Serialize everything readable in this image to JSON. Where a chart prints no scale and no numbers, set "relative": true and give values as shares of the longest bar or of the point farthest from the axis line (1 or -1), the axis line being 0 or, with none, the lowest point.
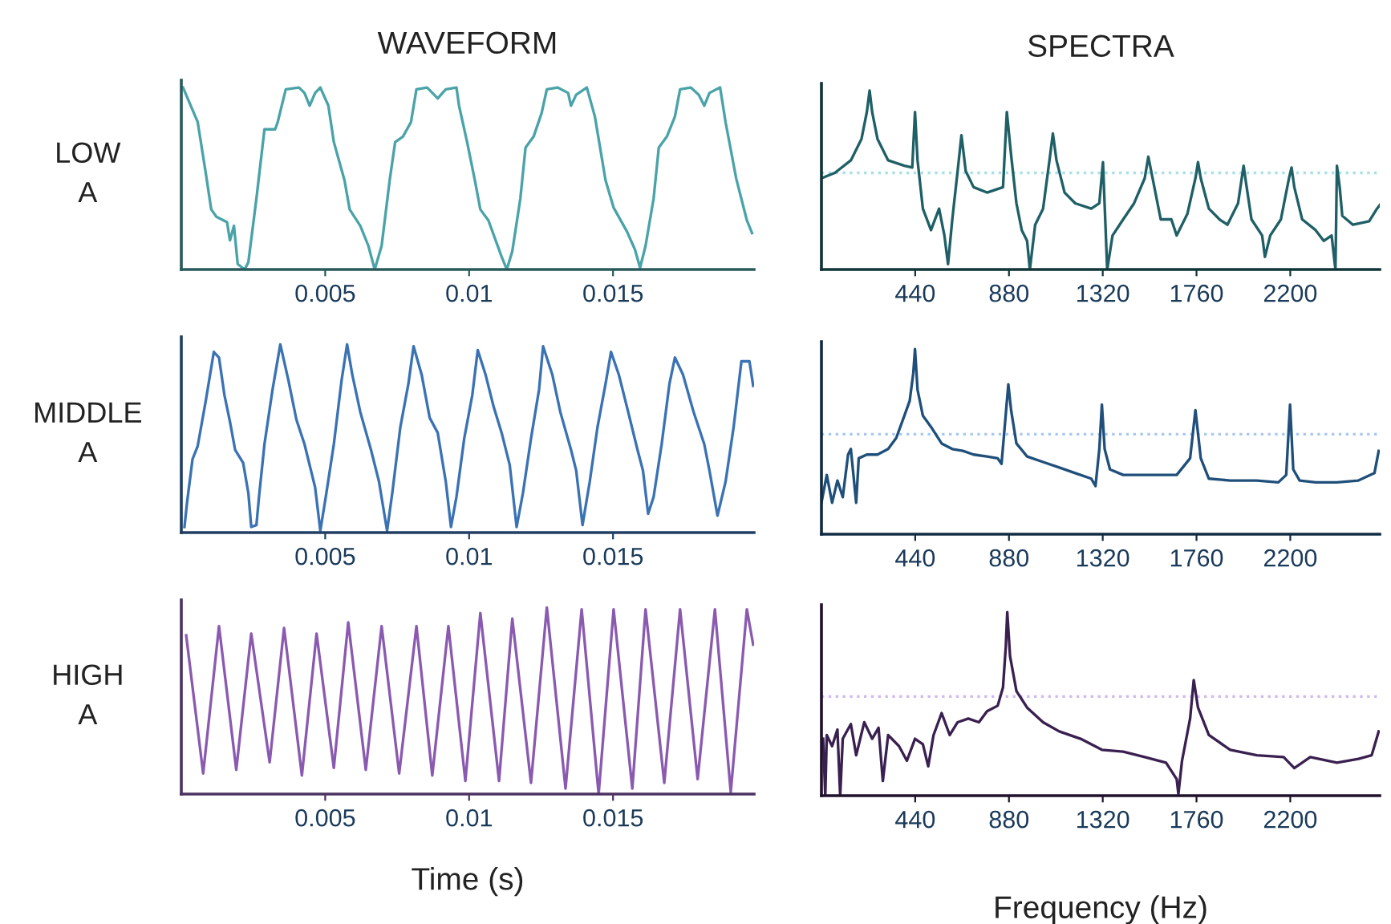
{
  "chart_data": [
    {
      "type": "line",
      "title": "WAVEFORM",
      "ylabel": "LOW\nA",
      "relative": true,
      "tick_labels": "x",
      "xlim": [
        0,
        0.0199
      ],
      "xticks": [
        0.005,
        0.01,
        0.015
      ],
      "x": [
        6e-05,
        0.00057,
        0.00085,
        0.00104,
        0.00122,
        0.00159,
        0.00169,
        0.00183,
        0.00196,
        0.0022,
        0.00233,
        0.00261,
        0.00289,
        0.00326,
        0.00335,
        0.00363,
        0.00409,
        0.00428,
        0.00446,
        0.00465,
        0.00483,
        0.00511,
        0.0053,
        0.00567,
        0.00585,
        0.00622,
        0.0065,
        0.00672,
        0.00696,
        0.00724,
        0.00743,
        0.0077,
        0.00798,
        0.00817,
        0.00854,
        0.00891,
        0.00919,
        0.00956,
        0.00965,
        0.00993,
        0.0102,
        0.01039,
        0.01067,
        0.01113,
        0.01131,
        0.0115,
        0.01178,
        0.01196,
        0.01224,
        0.01252,
        0.0127,
        0.01307,
        0.01344,
        0.01354,
        0.01372,
        0.01409,
        0.01437,
        0.01474,
        0.01502,
        0.01548,
        0.01576,
        0.01594,
        0.01613,
        0.01641,
        0.01659,
        0.01687,
        0.01715,
        0.01733,
        0.0177,
        0.01798,
        0.01817,
        0.01835,
        0.01872,
        0.01891,
        0.01928,
        0.01965,
        0.01983
      ],
      "series": [
        {
          "color": "#4aa3a8",
          "values": [
            1.0,
            0.81,
            0.53,
            0.33,
            0.29,
            0.26,
            0.16,
            0.24,
            0.03,
            0.0,
            0.04,
            0.39,
            0.77,
            0.77,
            0.81,
            0.99,
            1.0,
            0.97,
            0.9,
            0.97,
            1.0,
            0.9,
            0.7,
            0.49,
            0.33,
            0.24,
            0.13,
            0.0,
            0.13,
            0.49,
            0.7,
            0.73,
            0.81,
            0.99,
            1.0,
            0.94,
            0.99,
            1.0,
            0.9,
            0.7,
            0.49,
            0.33,
            0.27,
            0.07,
            0.0,
            0.1,
            0.39,
            0.67,
            0.73,
            0.86,
            0.99,
            1.0,
            0.97,
            0.9,
            0.96,
            1.0,
            0.84,
            0.49,
            0.34,
            0.21,
            0.11,
            0.01,
            0.13,
            0.39,
            0.67,
            0.73,
            0.84,
            0.99,
            1.0,
            0.96,
            0.9,
            0.97,
            1.0,
            0.81,
            0.5,
            0.27,
            0.2
          ]
        }
      ]
    },
    {
      "type": "line",
      "title": "SPECTRA",
      "relative": true,
      "tick_labels": "x",
      "xlim": [
        0,
        2620
      ],
      "xticks": [
        440,
        880,
        1320,
        1760,
        2200
      ],
      "ref_lines": [
        {
          "axis": "y",
          "value": 0.54,
          "color": "#a8e0e8",
          "line_style": "dotted"
        }
      ],
      "x": [
        0,
        63,
        138,
        188,
        213,
        226,
        238,
        263,
        313,
        389,
        426,
        439,
        451,
        476,
        514,
        552,
        577,
        594,
        614,
        639,
        657,
        677,
        714,
        777,
        852,
        870,
        890,
        915,
        940,
        965,
        978,
        1003,
        1040,
        1070,
        1086,
        1103,
        1141,
        1191,
        1266,
        1304,
        1321,
        1341,
        1366,
        1416,
        1467,
        1517,
        1534,
        1554,
        1592,
        1642,
        1667,
        1717,
        1755,
        1767,
        1780,
        1818,
        1868,
        1905,
        1955,
        1981,
        1993,
        2018,
        2068,
        2081,
        2106,
        2156,
        2194,
        2206,
        2219,
        2256,
        2319,
        2357,
        2394,
        2412,
        2419,
        2432,
        2444,
        2494,
        2570,
        2607,
        2620
      ],
      "series": [
        {
          "color": "#1f5f66",
          "values": [
            0.51,
            0.54,
            0.61,
            0.73,
            0.88,
            1.0,
            0.88,
            0.73,
            0.61,
            0.58,
            0.57,
            0.88,
            0.61,
            0.34,
            0.22,
            0.34,
            0.19,
            0.03,
            0.28,
            0.55,
            0.75,
            0.55,
            0.46,
            0.43,
            0.46,
            0.88,
            0.64,
            0.37,
            0.22,
            0.16,
            0.0,
            0.25,
            0.34,
            0.61,
            0.76,
            0.61,
            0.43,
            0.37,
            0.34,
            0.37,
            0.6,
            0.0,
            0.19,
            0.28,
            0.37,
            0.51,
            0.63,
            0.51,
            0.28,
            0.28,
            0.19,
            0.31,
            0.51,
            0.6,
            0.51,
            0.34,
            0.28,
            0.25,
            0.37,
            0.58,
            0.48,
            0.28,
            0.19,
            0.07,
            0.19,
            0.28,
            0.51,
            0.57,
            0.46,
            0.28,
            0.22,
            0.16,
            0.19,
            0.0,
            0.58,
            0.46,
            0.3,
            0.25,
            0.27,
            0.34,
            0.36
          ]
        }
      ]
    },
    {
      "type": "line",
      "ylabel": "MIDDLE\nA",
      "relative": true,
      "tick_labels": "x",
      "xlim": [
        0,
        0.0199
      ],
      "xticks": [
        0.005,
        0.01,
        0.015
      ],
      "x": [
        0.00011,
        0.0002,
        0.00039,
        0.00057,
        0.00085,
        0.00113,
        0.00131,
        0.0015,
        0.00169,
        0.00187,
        0.00215,
        0.00233,
        0.00243,
        0.00261,
        0.0027,
        0.00289,
        0.00317,
        0.00344,
        0.00372,
        0.004,
        0.00428,
        0.00465,
        0.00483,
        0.00502,
        0.0053,
        0.00557,
        0.00576,
        0.00594,
        0.00622,
        0.00659,
        0.00687,
        0.00715,
        0.00733,
        0.00761,
        0.00789,
        0.00807,
        0.00835,
        0.00863,
        0.00891,
        0.00919,
        0.00937,
        0.00956,
        0.00983,
        0.01011,
        0.0103,
        0.01057,
        0.01085,
        0.01113,
        0.01141,
        0.01165,
        0.01187,
        0.01215,
        0.01243,
        0.01257,
        0.01289,
        0.01317,
        0.01354,
        0.01372,
        0.01394,
        0.01419,
        0.01446,
        0.01474,
        0.01493,
        0.0152,
        0.01548,
        0.01585,
        0.01604,
        0.01622,
        0.01641,
        0.01669,
        0.01696,
        0.01715,
        0.01743,
        0.0178,
        0.01817,
        0.01835,
        0.01863,
        0.01891,
        0.01919,
        0.01946,
        0.01974,
        0.01987
      ],
      "series": [
        {
          "color": "#3a72b4",
          "values": [
            0.03,
            0.16,
            0.39,
            0.46,
            0.7,
            0.96,
            0.93,
            0.73,
            0.59,
            0.44,
            0.37,
            0.21,
            0.03,
            0.04,
            0.19,
            0.47,
            0.76,
            1.0,
            0.81,
            0.6,
            0.47,
            0.24,
            0.01,
            0.19,
            0.47,
            0.81,
            1.0,
            0.84,
            0.64,
            0.44,
            0.27,
            0.01,
            0.21,
            0.56,
            0.79,
            0.99,
            0.84,
            0.61,
            0.53,
            0.27,
            0.03,
            0.19,
            0.5,
            0.73,
            0.97,
            0.84,
            0.67,
            0.53,
            0.36,
            0.03,
            0.21,
            0.5,
            0.76,
            0.99,
            0.84,
            0.64,
            0.44,
            0.33,
            0.04,
            0.27,
            0.56,
            0.79,
            0.96,
            0.84,
            0.67,
            0.44,
            0.33,
            0.1,
            0.19,
            0.47,
            0.79,
            0.93,
            0.84,
            0.64,
            0.47,
            0.33,
            0.09,
            0.27,
            0.56,
            0.91,
            0.91,
            0.78
          ]
        }
      ]
    },
    {
      "type": "line",
      "relative": true,
      "tick_labels": "x",
      "xlim": [
        0,
        2620
      ],
      "xticks": [
        440,
        880,
        1320,
        1760,
        2200
      ],
      "ref_lines": [
        {
          "axis": "y",
          "value": 0.54,
          "color": "#a8c8f0",
          "line_style": "dotted"
        }
      ],
      "x": [
        0,
        25,
        50,
        75,
        100,
        125,
        138,
        163,
        175,
        213,
        263,
        313,
        351,
        389,
        414,
        431,
        439,
        451,
        476,
        514,
        564,
        614,
        664,
        714,
        777,
        827,
        845,
        860,
        877,
        890,
        915,
        965,
        1040,
        1116,
        1191,
        1266,
        1286,
        1304,
        1316,
        1329,
        1354,
        1416,
        1517,
        1667,
        1730,
        1755,
        1780,
        1818,
        1918,
        2043,
        2144,
        2181,
        2199,
        2214,
        2244,
        2319,
        2419,
        2520,
        2595,
        2615
      ],
      "series": [
        {
          "color": "#1f4f7a",
          "values": [
            0.17,
            0.32,
            0.17,
            0.29,
            0.2,
            0.43,
            0.46,
            0.17,
            0.41,
            0.43,
            0.43,
            0.46,
            0.52,
            0.64,
            0.72,
            0.87,
            1.0,
            0.78,
            0.64,
            0.58,
            0.49,
            0.46,
            0.45,
            0.43,
            0.42,
            0.41,
            0.38,
            0.58,
            0.81,
            0.67,
            0.49,
            0.42,
            0.39,
            0.36,
            0.33,
            0.3,
            0.26,
            0.46,
            0.7,
            0.46,
            0.35,
            0.32,
            0.32,
            0.32,
            0.41,
            0.67,
            0.41,
            0.3,
            0.29,
            0.29,
            0.28,
            0.32,
            0.7,
            0.35,
            0.29,
            0.28,
            0.28,
            0.29,
            0.33,
            0.45
          ]
        }
      ]
    },
    {
      "type": "line",
      "ylabel": "HIGH\nA",
      "xlabel": "Time (s)",
      "relative": true,
      "tick_labels": "x",
      "xlim": [
        0,
        0.0199
      ],
      "xticks": [
        0.005,
        0.01,
        0.015
      ],
      "x": [
        0.00017,
        0.00076,
        0.00131,
        0.00191,
        0.00243,
        0.00307,
        0.00357,
        0.00419,
        0.0047,
        0.0053,
        0.0058,
        0.00641,
        0.00696,
        0.00757,
        0.00817,
        0.00872,
        0.00928,
        0.00987,
        0.01039,
        0.01104,
        0.0115,
        0.01215,
        0.0127,
        0.01335,
        0.01391,
        0.0145,
        0.01502,
        0.01567,
        0.01613,
        0.01678,
        0.01733,
        0.01794,
        0.01854,
        0.01909,
        0.01965,
        0.01987
      ],
      "series": [
        {
          "color": "#8a5ab0",
          "values": [
            0.85,
            0.11,
            0.9,
            0.13,
            0.86,
            0.17,
            0.89,
            0.1,
            0.86,
            0.14,
            0.92,
            0.13,
            0.9,
            0.11,
            0.9,
            0.1,
            0.9,
            0.07,
            0.97,
            0.07,
            0.94,
            0.06,
            1.0,
            0.03,
            0.99,
            0.0,
            0.99,
            0.03,
            0.99,
            0.06,
            0.99,
            0.08,
            0.99,
            0.01,
            0.99,
            0.8
          ]
        }
      ]
    },
    {
      "type": "line",
      "xlabel": "Frequency (Hz)",
      "relative": true,
      "tick_labels": "x",
      "xlim": [
        0,
        2620
      ],
      "xticks": [
        440,
        880,
        1320,
        1760,
        2200
      ],
      "ref_lines": [
        {
          "axis": "y",
          "value": 0.54,
          "color": "#d0b8f0",
          "line_style": "dotted"
        }
      ],
      "x": [
        8,
        18,
        25,
        50,
        75,
        88,
        100,
        138,
        163,
        201,
        238,
        268,
        288,
        313,
        364,
        401,
        439,
        476,
        501,
        526,
        564,
        602,
        639,
        689,
        739,
        777,
        827,
        852,
        865,
        872,
        885,
        915,
        965,
        1040,
        1116,
        1216,
        1316,
        1416,
        1517,
        1617,
        1667,
        1675,
        1692,
        1730,
        1747,
        1767,
        1818,
        1918,
        2043,
        2169,
        2219,
        2294,
        2419,
        2520,
        2582,
        2615
      ],
      "series": [
        {
          "color": "#3a2050",
          "values": [
            0.31,
            0.0,
            0.33,
            0.27,
            0.36,
            0.0,
            0.31,
            0.39,
            0.22,
            0.4,
            0.31,
            0.37,
            0.08,
            0.33,
            0.27,
            0.19,
            0.31,
            0.28,
            0.16,
            0.33,
            0.45,
            0.33,
            0.4,
            0.42,
            0.4,
            0.46,
            0.49,
            0.59,
            0.81,
            1.0,
            0.76,
            0.57,
            0.48,
            0.4,
            0.35,
            0.31,
            0.25,
            0.24,
            0.21,
            0.18,
            0.09,
            0.01,
            0.19,
            0.42,
            0.63,
            0.48,
            0.33,
            0.25,
            0.22,
            0.21,
            0.15,
            0.21,
            0.18,
            0.2,
            0.22,
            0.35
          ]
        }
      ]
    }
  ]
}
